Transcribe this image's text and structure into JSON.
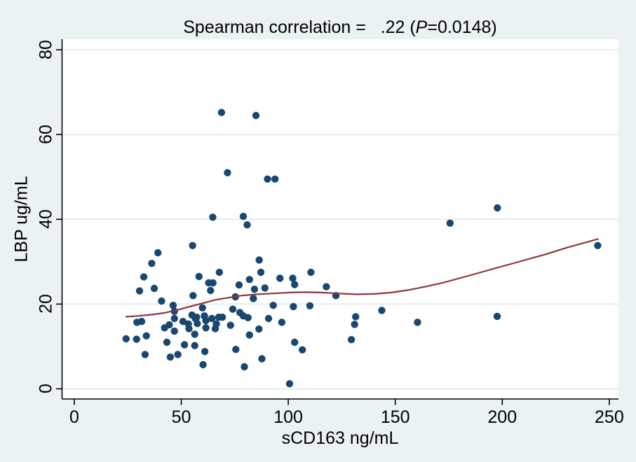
{
  "figure": {
    "title": {
      "lhs": "Spearman correlation =",
      "gap": "   ",
      "value": ".22 (",
      "p_italic": "P",
      "rhs": "=0.0148)"
    }
  },
  "chart_data": {
    "type": "scatter",
    "title": "Spearman correlation = .22 (P=0.0148)",
    "xlabel": "sCD163 ng/mL",
    "ylabel": "LBP ug/mL",
    "xlim": [
      -5.7,
      254.3
    ],
    "ylim": [
      -2.4,
      82.5
    ],
    "xticks": [
      0,
      50,
      100,
      150,
      200,
      250
    ],
    "yticks": [
      0,
      20,
      40,
      60,
      80
    ],
    "grid": "horizontal-only",
    "legend": "none",
    "series": [
      {
        "name": "scatter sCD163 vs LBP",
        "marker": "filled-circle"
      },
      {
        "name": "lowess smoother",
        "style": "solid-line"
      }
    ],
    "points": [
      [
        68.8,
        65.2
      ],
      [
        84.9,
        64.5
      ],
      [
        71.6,
        51.0
      ],
      [
        90.3,
        49.5
      ],
      [
        93.8,
        49.5
      ],
      [
        64.7,
        40.5
      ],
      [
        79.0,
        40.7
      ],
      [
        80.8,
        38.7
      ],
      [
        175.6,
        39.1
      ],
      [
        197.7,
        42.7
      ],
      [
        244.6,
        33.8
      ],
      [
        55.3,
        33.8
      ],
      [
        39.1,
        32.1
      ],
      [
        36.2,
        29.6
      ],
      [
        86.4,
        30.4
      ],
      [
        32.5,
        26.4
      ],
      [
        58.3,
        26.5
      ],
      [
        67.8,
        27.5
      ],
      [
        87.2,
        27.5
      ],
      [
        96.1,
        26.1
      ],
      [
        102.1,
        26.1
      ],
      [
        103.0,
        24.6
      ],
      [
        110.6,
        27.5
      ],
      [
        62.8,
        25.0
      ],
      [
        64.8,
        25.0
      ],
      [
        63.7,
        23.2
      ],
      [
        55.5,
        22.0
      ],
      [
        30.5,
        23.1
      ],
      [
        37.4,
        23.7
      ],
      [
        40.8,
        20.7
      ],
      [
        77.0,
        24.5
      ],
      [
        84.2,
        23.5
      ],
      [
        89.1,
        23.8
      ],
      [
        117.8,
        24.1
      ],
      [
        122.3,
        22.0
      ],
      [
        93.0,
        19.7
      ],
      [
        102.4,
        19.4
      ],
      [
        110.1,
        19.6
      ],
      [
        143.7,
        18.5
      ],
      [
        160.4,
        15.7
      ],
      [
        131.5,
        17.0
      ],
      [
        131.0,
        15.2
      ],
      [
        129.5,
        11.6
      ],
      [
        197.6,
        17.1
      ],
      [
        29.3,
        15.7
      ],
      [
        31.5,
        15.9
      ],
      [
        24.2,
        11.8
      ],
      [
        29.1,
        11.7
      ],
      [
        33.7,
        12.5
      ],
      [
        33.1,
        8.1
      ],
      [
        43.3,
        11.0
      ],
      [
        44.9,
        7.5
      ],
      [
        48.4,
        8.1
      ],
      [
        51.5,
        10.4
      ],
      [
        56.3,
        10.2
      ],
      [
        56.3,
        12.9
      ],
      [
        61.0,
        8.8
      ],
      [
        60.2,
        5.7
      ],
      [
        75.5,
        9.3
      ],
      [
        73.0,
        15.0
      ],
      [
        42.2,
        14.4
      ],
      [
        44.4,
        15.1
      ],
      [
        46.8,
        16.6
      ],
      [
        46.8,
        13.6
      ],
      [
        53.3,
        15.3
      ],
      [
        53.6,
        14.2
      ],
      [
        57.5,
        15.4
      ],
      [
        57.2,
        16.9
      ],
      [
        61.5,
        16.1
      ],
      [
        64.3,
        16.6
      ],
      [
        66.4,
        15.3
      ],
      [
        61.5,
        14.4
      ],
      [
        65.9,
        14.2
      ],
      [
        69.2,
        16.9
      ],
      [
        81.2,
        16.8
      ],
      [
        90.8,
        16.6
      ],
      [
        97.0,
        15.7
      ],
      [
        86.3,
        14.1
      ],
      [
        81.9,
        12.7
      ],
      [
        103.0,
        11.0
      ],
      [
        106.6,
        9.2
      ],
      [
        87.7,
        7.1
      ],
      [
        79.5,
        5.2
      ],
      [
        100.6,
        1.2
      ],
      [
        81.9,
        25.8
      ],
      [
        46.2,
        19.7
      ],
      [
        46.8,
        18.3
      ],
      [
        50.8,
        15.9
      ],
      [
        55.0,
        17.4
      ],
      [
        56.6,
        16.6
      ],
      [
        59.9,
        19.1
      ],
      [
        60.8,
        17.2
      ],
      [
        67.5,
        16.9
      ],
      [
        74.1,
        18.8
      ],
      [
        77.4,
        18.0
      ],
      [
        79.0,
        17.2
      ],
      [
        83.7,
        21.3
      ],
      [
        75.3,
        21.7
      ]
    ],
    "lowess": [
      [
        24,
        17.0
      ],
      [
        30,
        17.2
      ],
      [
        36,
        17.5
      ],
      [
        42,
        17.9
      ],
      [
        48,
        18.6
      ],
      [
        54,
        19.4
      ],
      [
        60,
        20.2
      ],
      [
        66,
        21.0
      ],
      [
        72,
        21.5
      ],
      [
        78,
        22.0
      ],
      [
        85,
        22.3
      ],
      [
        92,
        22.5
      ],
      [
        100,
        22.7
      ],
      [
        108,
        22.8
      ],
      [
        116,
        22.7
      ],
      [
        124,
        22.5
      ],
      [
        132,
        22.3
      ],
      [
        140,
        22.4
      ],
      [
        148,
        22.7
      ],
      [
        156,
        23.3
      ],
      [
        164,
        24.1
      ],
      [
        172,
        25.0
      ],
      [
        180,
        26.1
      ],
      [
        190,
        27.5
      ],
      [
        200,
        28.9
      ],
      [
        210,
        30.3
      ],
      [
        220,
        31.7
      ],
      [
        230,
        33.3
      ],
      [
        238,
        34.4
      ],
      [
        245,
        35.4
      ]
    ],
    "colors": {
      "background": "#eaf2f3",
      "plot_background": "#ffffff",
      "gridline": "#e3edf0",
      "marker": "#1a476f",
      "lowess_line": "#90353b",
      "axis": "#000000",
      "text": "#000000"
    }
  }
}
